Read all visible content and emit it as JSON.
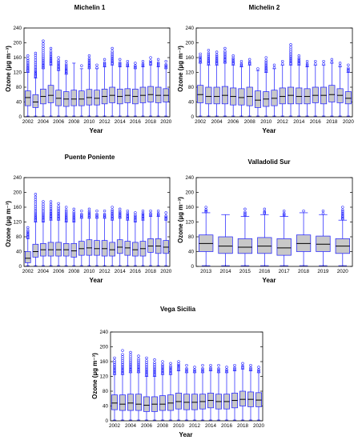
{
  "chart_data": [
    {
      "type": "box",
      "title": "Michelin 1",
      "xlabel": "Year",
      "ylabel": "Ozone (µg m⁻³)",
      "ylim": [
        0,
        240
      ],
      "yticks": [
        0,
        40,
        80,
        120,
        160,
        200,
        240
      ],
      "categories": [
        "2002",
        "2003",
        "2004",
        "2005",
        "2006",
        "2007",
        "2008",
        "2009",
        "2010",
        "2011",
        "2012",
        "2013",
        "2014",
        "2015",
        "2016",
        "2017",
        "2018",
        "2019",
        "2020"
      ],
      "xtick_labels": [
        "2002",
        "2004",
        "2006",
        "2008",
        "2010",
        "2012",
        "2014",
        "2016",
        "2018",
        "2020"
      ],
      "series": [
        {
          "year": "2002",
          "min": 2,
          "q1": 30,
          "median": 52,
          "q3": 70,
          "max": 120,
          "outlier_max": 165
        },
        {
          "year": "2003",
          "min": 2,
          "q1": 25,
          "median": 40,
          "q3": 60,
          "max": 105,
          "outlier_max": 172
        },
        {
          "year": "2004",
          "min": 2,
          "q1": 35,
          "median": 55,
          "q3": 75,
          "max": 130,
          "outlier_max": 205
        },
        {
          "year": "2005",
          "min": 2,
          "q1": 38,
          "median": 58,
          "q3": 85,
          "max": 140,
          "outlier_max": 185
        },
        {
          "year": "2006",
          "min": 2,
          "q1": 30,
          "median": 50,
          "q3": 72,
          "max": 125,
          "outlier_max": 160
        },
        {
          "year": "2007",
          "min": 2,
          "q1": 28,
          "median": 48,
          "q3": 68,
          "max": 115,
          "outlier_max": 150
        },
        {
          "year": "2008",
          "min": 2,
          "q1": 30,
          "median": 48,
          "q3": 72,
          "max": 145,
          "outlier_max": 145
        },
        {
          "year": "2009",
          "min": 2,
          "q1": 30,
          "median": 48,
          "q3": 70,
          "max": 130,
          "outlier_max": 138
        },
        {
          "year": "2010",
          "min": 2,
          "q1": 32,
          "median": 52,
          "q3": 74,
          "max": 130,
          "outlier_max": 165
        },
        {
          "year": "2011",
          "min": 2,
          "q1": 32,
          "median": 50,
          "q3": 72,
          "max": 130,
          "outlier_max": 140
        },
        {
          "year": "2012",
          "min": 2,
          "q1": 35,
          "median": 55,
          "q3": 75,
          "max": 135,
          "outlier_max": 155
        },
        {
          "year": "2013",
          "min": 2,
          "q1": 38,
          "median": 58,
          "q3": 80,
          "max": 140,
          "outlier_max": 185
        },
        {
          "year": "2014",
          "min": 2,
          "q1": 35,
          "median": 55,
          "q3": 75,
          "max": 135,
          "outlier_max": 155
        },
        {
          "year": "2015",
          "min": 2,
          "q1": 38,
          "median": 58,
          "q3": 76,
          "max": 135,
          "outlier_max": 150
        },
        {
          "year": "2016",
          "min": 2,
          "q1": 35,
          "median": 55,
          "q3": 75,
          "max": 130,
          "outlier_max": 145
        },
        {
          "year": "2017",
          "min": 2,
          "q1": 38,
          "median": 58,
          "q3": 80,
          "max": 135,
          "outlier_max": 150
        },
        {
          "year": "2018",
          "min": 2,
          "q1": 40,
          "median": 60,
          "q3": 82,
          "max": 140,
          "outlier_max": 160
        },
        {
          "year": "2019",
          "min": 2,
          "q1": 38,
          "median": 58,
          "q3": 80,
          "max": 135,
          "outlier_max": 155
        },
        {
          "year": "2020",
          "min": 2,
          "q1": 40,
          "median": 58,
          "q3": 76,
          "max": 130,
          "outlier_max": 150
        }
      ]
    },
    {
      "type": "box",
      "title": "Michelin 2",
      "xlabel": "Year",
      "ylabel": "Ozone (µg m⁻³)",
      "ylim": [
        0,
        240
      ],
      "yticks": [
        0,
        40,
        80,
        120,
        160,
        200,
        240
      ],
      "categories": [
        "2002",
        "2003",
        "2004",
        "2005",
        "2006",
        "2007",
        "2008",
        "2009",
        "2010",
        "2011",
        "2012",
        "2013",
        "2014",
        "2015",
        "2016",
        "2017",
        "2018",
        "2019",
        "2020"
      ],
      "xtick_labels": [
        "2002",
        "2004",
        "2006",
        "2008",
        "2010",
        "2012",
        "2014",
        "2016",
        "2018",
        "2020"
      ],
      "series": [
        {
          "year": "2002",
          "min": 2,
          "q1": 38,
          "median": 60,
          "q3": 85,
          "max": 145,
          "outlier_max": 170
        },
        {
          "year": "2003",
          "min": 2,
          "q1": 35,
          "median": 55,
          "q3": 80,
          "max": 140,
          "outlier_max": 180
        },
        {
          "year": "2004",
          "min": 2,
          "q1": 35,
          "median": 55,
          "q3": 80,
          "max": 140,
          "outlier_max": 175
        },
        {
          "year": "2005",
          "min": 2,
          "q1": 35,
          "median": 58,
          "q3": 82,
          "max": 145,
          "outlier_max": 185
        },
        {
          "year": "2006",
          "min": 2,
          "q1": 32,
          "median": 55,
          "q3": 78,
          "max": 140,
          "outlier_max": 165
        },
        {
          "year": "2007",
          "min": 2,
          "q1": 32,
          "median": 52,
          "q3": 76,
          "max": 135,
          "outlier_max": 150
        },
        {
          "year": "2008",
          "min": 2,
          "q1": 30,
          "median": 55,
          "q3": 80,
          "max": 140,
          "outlier_max": 155
        },
        {
          "year": "2009",
          "min": 2,
          "q1": 25,
          "median": 45,
          "q3": 70,
          "max": 125,
          "outlier_max": 130
        },
        {
          "year": "2010",
          "min": 2,
          "q1": 28,
          "median": 48,
          "q3": 68,
          "max": 120,
          "outlier_max": 160
        },
        {
          "year": "2011",
          "min": 2,
          "q1": 30,
          "median": 50,
          "q3": 72,
          "max": 130,
          "outlier_max": 140
        },
        {
          "year": "2012",
          "min": 2,
          "q1": 35,
          "median": 55,
          "q3": 78,
          "max": 140,
          "outlier_max": 150
        },
        {
          "year": "2013",
          "min": 2,
          "q1": 35,
          "median": 58,
          "q3": 80,
          "max": 140,
          "outlier_max": 195
        },
        {
          "year": "2014",
          "min": 2,
          "q1": 35,
          "median": 55,
          "q3": 78,
          "max": 140,
          "outlier_max": 165
        },
        {
          "year": "2015",
          "min": 2,
          "q1": 35,
          "median": 55,
          "q3": 76,
          "max": 135,
          "outlier_max": 150
        },
        {
          "year": "2016",
          "min": 2,
          "q1": 38,
          "median": 58,
          "q3": 80,
          "max": 140,
          "outlier_max": 150
        },
        {
          "year": "2017",
          "min": 2,
          "q1": 35,
          "median": 58,
          "q3": 80,
          "max": 140,
          "outlier_max": 150
        },
        {
          "year": "2018",
          "min": 2,
          "q1": 40,
          "median": 60,
          "q3": 85,
          "max": 145,
          "outlier_max": 155
        },
        {
          "year": "2019",
          "min": 2,
          "q1": 38,
          "median": 58,
          "q3": 76,
          "max": 135,
          "outlier_max": 145
        },
        {
          "year": "2020",
          "min": 2,
          "q1": 35,
          "median": 50,
          "q3": 68,
          "max": 120,
          "outlier_max": 140
        }
      ]
    },
    {
      "type": "box",
      "title": "Puente Poniente",
      "xlabel": "Year",
      "ylabel": "Ozone (µg m⁻³)",
      "ylim": [
        0,
        240
      ],
      "yticks": [
        0,
        40,
        80,
        120,
        160,
        200,
        240
      ],
      "categories": [
        "2002",
        "2003",
        "2004",
        "2005",
        "2006",
        "2007",
        "2008",
        "2009",
        "2010",
        "2011",
        "2012",
        "2013",
        "2014",
        "2015",
        "2016",
        "2017",
        "2018",
        "2019",
        "2020"
      ],
      "xtick_labels": [
        "2002",
        "2004",
        "2006",
        "2008",
        "2010",
        "2012",
        "2014",
        "2016",
        "2018",
        "2020"
      ],
      "series": [
        {
          "year": "2002",
          "min": 2,
          "q1": 10,
          "median": 22,
          "q3": 40,
          "max": 75,
          "outlier_max": 105
        },
        {
          "year": "2003",
          "min": 2,
          "q1": 25,
          "median": 40,
          "q3": 60,
          "max": 120,
          "outlier_max": 195
        },
        {
          "year": "2004",
          "min": 2,
          "q1": 28,
          "median": 45,
          "q3": 62,
          "max": 120,
          "outlier_max": 175
        },
        {
          "year": "2005",
          "min": 2,
          "q1": 28,
          "median": 45,
          "q3": 65,
          "max": 125,
          "outlier_max": 175
        },
        {
          "year": "2006",
          "min": 2,
          "q1": 28,
          "median": 45,
          "q3": 65,
          "max": 125,
          "outlier_max": 170
        },
        {
          "year": "2007",
          "min": 2,
          "q1": 28,
          "median": 45,
          "q3": 62,
          "max": 120,
          "outlier_max": 160
        },
        {
          "year": "2008",
          "min": 2,
          "q1": 25,
          "median": 42,
          "q3": 62,
          "max": 120,
          "outlier_max": 155
        },
        {
          "year": "2009",
          "min": 2,
          "q1": 30,
          "median": 48,
          "q3": 68,
          "max": 130,
          "outlier_max": 150
        },
        {
          "year": "2010",
          "min": 2,
          "q1": 30,
          "median": 50,
          "q3": 72,
          "max": 130,
          "outlier_max": 155
        },
        {
          "year": "2011",
          "min": 2,
          "q1": 30,
          "median": 48,
          "q3": 70,
          "max": 130,
          "outlier_max": 150
        },
        {
          "year": "2012",
          "min": 2,
          "q1": 28,
          "median": 48,
          "q3": 70,
          "max": 130,
          "outlier_max": 150
        },
        {
          "year": "2013",
          "min": 2,
          "q1": 28,
          "median": 45,
          "q3": 65,
          "max": 125,
          "outlier_max": 160
        },
        {
          "year": "2014",
          "min": 2,
          "q1": 35,
          "median": 52,
          "q3": 72,
          "max": 130,
          "outlier_max": 155
        },
        {
          "year": "2015",
          "min": 2,
          "q1": 30,
          "median": 50,
          "q3": 68,
          "max": 125,
          "outlier_max": 150
        },
        {
          "year": "2016",
          "min": 2,
          "q1": 28,
          "median": 45,
          "q3": 65,
          "max": 120,
          "outlier_max": 145
        },
        {
          "year": "2017",
          "min": 2,
          "q1": 28,
          "median": 48,
          "q3": 68,
          "max": 125,
          "outlier_max": 150
        },
        {
          "year": "2018",
          "min": 2,
          "q1": 38,
          "median": 55,
          "q3": 75,
          "max": 135,
          "outlier_max": 150
        },
        {
          "year": "2019",
          "min": 2,
          "q1": 35,
          "median": 55,
          "q3": 75,
          "max": 135,
          "outlier_max": 150
        },
        {
          "year": "2020",
          "min": 2,
          "q1": 35,
          "median": 52,
          "q3": 70,
          "max": 125,
          "outlier_max": 145
        }
      ]
    },
    {
      "type": "box",
      "title": "Valladolid Sur",
      "xlabel": "Year",
      "ylabel": "Ozone (µg m⁻³)",
      "ylim": [
        0,
        240
      ],
      "yticks": [
        0,
        40,
        80,
        120,
        160,
        200,
        240
      ],
      "categories": [
        "2013",
        "2014",
        "2015",
        "2016",
        "2017",
        "2018",
        "2019",
        "2020"
      ],
      "xtick_labels": [
        "2013",
        "2014",
        "2015",
        "2016",
        "2017",
        "2018",
        "2019",
        "2020"
      ],
      "series": [
        {
          "year": "2013",
          "min": 2,
          "q1": 40,
          "median": 62,
          "q3": 85,
          "max": 145,
          "outlier_max": 160
        },
        {
          "year": "2014",
          "min": 2,
          "q1": 35,
          "median": 55,
          "q3": 80,
          "max": 140,
          "outlier_max": 140
        },
        {
          "year": "2015",
          "min": 2,
          "q1": 35,
          "median": 52,
          "q3": 75,
          "max": 135,
          "outlier_max": 155
        },
        {
          "year": "2016",
          "min": 2,
          "q1": 35,
          "median": 55,
          "q3": 78,
          "max": 140,
          "outlier_max": 155
        },
        {
          "year": "2017",
          "min": 2,
          "q1": 30,
          "median": 50,
          "q3": 75,
          "max": 135,
          "outlier_max": 150
        },
        {
          "year": "2018",
          "min": 2,
          "q1": 40,
          "median": 62,
          "q3": 85,
          "max": 145,
          "outlier_max": 150
        },
        {
          "year": "2019",
          "min": 2,
          "q1": 40,
          "median": 60,
          "q3": 82,
          "max": 140,
          "outlier_max": 150
        },
        {
          "year": "2020",
          "min": 2,
          "q1": 35,
          "median": 55,
          "q3": 75,
          "max": 125,
          "outlier_max": 160
        }
      ]
    },
    {
      "type": "box",
      "title": "Vega Sicilia",
      "xlabel": "Year",
      "ylabel": "Ozone (µg m⁻³)",
      "ylim": [
        0,
        240
      ],
      "yticks": [
        0,
        40,
        80,
        120,
        160,
        200,
        240
      ],
      "categories": [
        "2002",
        "2003",
        "2004",
        "2005",
        "2006",
        "2007",
        "2008",
        "2009",
        "2010",
        "2011",
        "2012",
        "2013",
        "2014",
        "2015",
        "2016",
        "2017",
        "2018",
        "2019",
        "2020"
      ],
      "xtick_labels": [
        "2002",
        "2004",
        "2006",
        "2008",
        "2010",
        "2012",
        "2014",
        "2016",
        "2018",
        "2020"
      ],
      "series": [
        {
          "year": "2002",
          "min": 2,
          "q1": 30,
          "median": 48,
          "q3": 70,
          "max": 125,
          "outlier_max": 170
        },
        {
          "year": "2003",
          "min": 2,
          "q1": 28,
          "median": 45,
          "q3": 70,
          "max": 125,
          "outlier_max": 190
        },
        {
          "year": "2004",
          "min": 2,
          "q1": 28,
          "median": 48,
          "q3": 72,
          "max": 130,
          "outlier_max": 185
        },
        {
          "year": "2005",
          "min": 2,
          "q1": 28,
          "median": 45,
          "q3": 72,
          "max": 130,
          "outlier_max": 175
        },
        {
          "year": "2006",
          "min": 2,
          "q1": 25,
          "median": 42,
          "q3": 65,
          "max": 120,
          "outlier_max": 170
        },
        {
          "year": "2007",
          "min": 2,
          "q1": 25,
          "median": 45,
          "q3": 65,
          "max": 120,
          "outlier_max": 165
        },
        {
          "year": "2008",
          "min": 2,
          "q1": 28,
          "median": 45,
          "q3": 68,
          "max": 125,
          "outlier_max": 160
        },
        {
          "year": "2009",
          "min": 2,
          "q1": 28,
          "median": 48,
          "q3": 70,
          "max": 125,
          "outlier_max": 155
        },
        {
          "year": "2010",
          "min": 2,
          "q1": 32,
          "median": 52,
          "q3": 75,
          "max": 135,
          "outlier_max": 160
        },
        {
          "year": "2011",
          "min": 2,
          "q1": 30,
          "median": 50,
          "q3": 72,
          "max": 130,
          "outlier_max": 150
        },
        {
          "year": "2012",
          "min": 2,
          "q1": 30,
          "median": 50,
          "q3": 72,
          "max": 130,
          "outlier_max": 145
        },
        {
          "year": "2013",
          "min": 2,
          "q1": 32,
          "median": 52,
          "q3": 72,
          "max": 130,
          "outlier_max": 150
        },
        {
          "year": "2014",
          "min": 2,
          "q1": 35,
          "median": 55,
          "q3": 75,
          "max": 135,
          "outlier_max": 150
        },
        {
          "year": "2015",
          "min": 2,
          "q1": 32,
          "median": 52,
          "q3": 72,
          "max": 130,
          "outlier_max": 150
        },
        {
          "year": "2016",
          "min": 2,
          "q1": 32,
          "median": 52,
          "q3": 72,
          "max": 130,
          "outlier_max": 145
        },
        {
          "year": "2017",
          "min": 2,
          "q1": 35,
          "median": 55,
          "q3": 75,
          "max": 135,
          "outlier_max": 150
        },
        {
          "year": "2018",
          "min": 2,
          "q1": 40,
          "median": 58,
          "q3": 80,
          "max": 140,
          "outlier_max": 155
        },
        {
          "year": "2019",
          "min": 2,
          "q1": 38,
          "median": 58,
          "q3": 78,
          "max": 135,
          "outlier_max": 150
        },
        {
          "year": "2020",
          "min": 2,
          "q1": 38,
          "median": 56,
          "q3": 76,
          "max": 130,
          "outlier_max": 145
        }
      ]
    }
  ],
  "colors": {
    "box_fill": "#c8c8c8",
    "box_edge": "#1a1aff",
    "whisker": "#1a1aff",
    "outlier": "#1a1aff",
    "median": "#000000"
  }
}
